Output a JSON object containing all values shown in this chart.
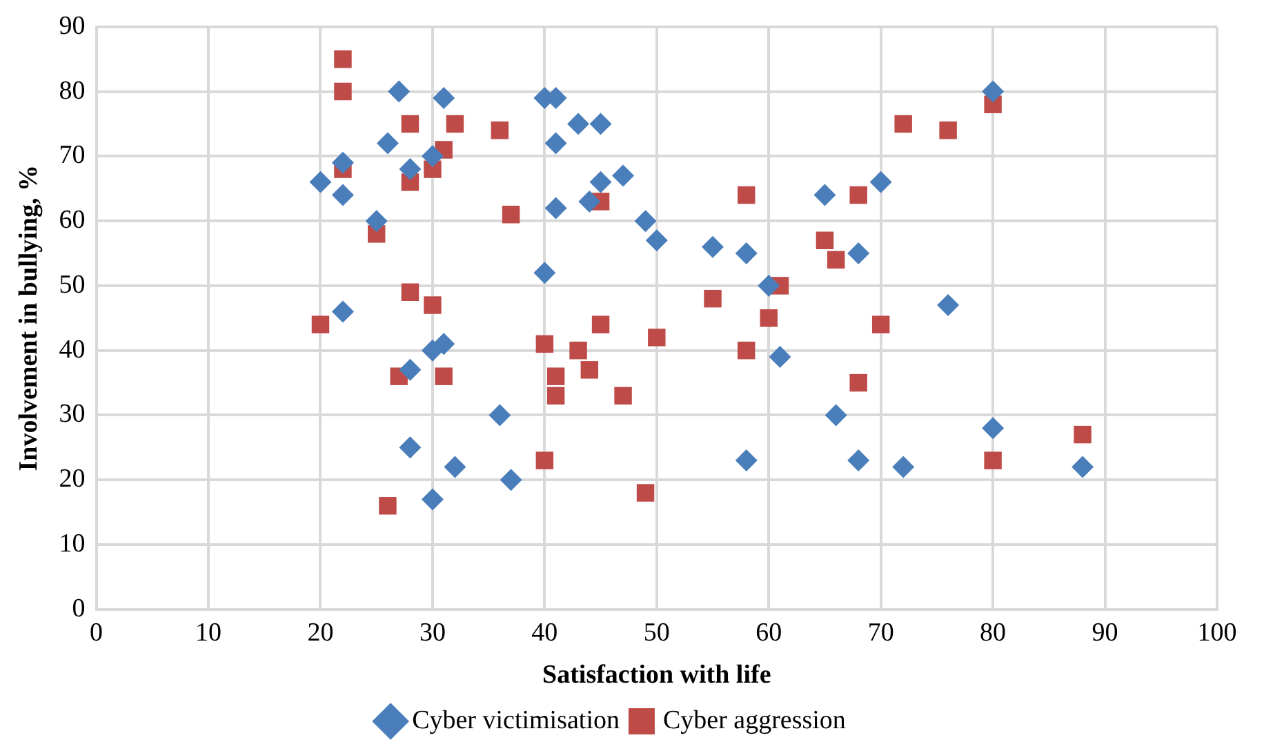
{
  "chart_data": {
    "type": "scatter",
    "xlabel": "Satisfaction with life",
    "ylabel": "Involvement in bullying, %",
    "xlim": [
      0,
      100
    ],
    "xticks": [
      0,
      10,
      20,
      30,
      40,
      50,
      60,
      70,
      80,
      90,
      100
    ],
    "ylim": [
      0,
      90
    ],
    "yticks": [
      0,
      10,
      20,
      30,
      40,
      50,
      60,
      70,
      80,
      90
    ],
    "grid": true,
    "legend": "bottom",
    "series": [
      {
        "name": "Cyber victimisation",
        "color": "#4a7ebb",
        "marker": "diamond",
        "x": [
          20,
          22,
          22,
          22,
          25,
          26,
          27,
          28,
          28,
          28,
          30,
          30,
          30,
          31,
          31,
          32,
          36,
          37,
          40,
          40,
          41,
          41,
          41,
          43,
          44,
          45,
          45,
          47,
          49,
          50,
          55,
          58,
          58,
          60,
          61,
          65,
          66,
          68,
          68,
          70,
          72,
          76,
          80,
          80,
          88
        ],
        "values": [
          66,
          69,
          64,
          46,
          60,
          72,
          80,
          68,
          37,
          25,
          70,
          40,
          17,
          79,
          41,
          22,
          30,
          20,
          79,
          52,
          79,
          72,
          62,
          75,
          63,
          75,
          66,
          67,
          60,
          57,
          56,
          55,
          23,
          50,
          39,
          64,
          30,
          55,
          23,
          66,
          22,
          47,
          80,
          28,
          22
        ]
      },
      {
        "name": "Cyber aggression",
        "color": "#be4b48",
        "marker": "square",
        "x": [
          20,
          22,
          22,
          22,
          25,
          26,
          27,
          28,
          28,
          28,
          30,
          30,
          31,
          31,
          32,
          36,
          37,
          40,
          40,
          41,
          41,
          43,
          44,
          45,
          45,
          47,
          49,
          50,
          55,
          58,
          58,
          60,
          61,
          65,
          66,
          68,
          68,
          70,
          72,
          76,
          80,
          80,
          88
        ],
        "values": [
          44,
          85,
          80,
          68,
          58,
          16,
          36,
          75,
          66,
          49,
          68,
          47,
          71,
          36,
          75,
          74,
          61,
          41,
          23,
          36,
          33,
          40,
          37,
          63,
          44,
          33,
          18,
          42,
          48,
          64,
          40,
          45,
          50,
          57,
          54,
          64,
          35,
          44,
          75,
          74,
          78,
          23,
          27
        ]
      }
    ]
  }
}
